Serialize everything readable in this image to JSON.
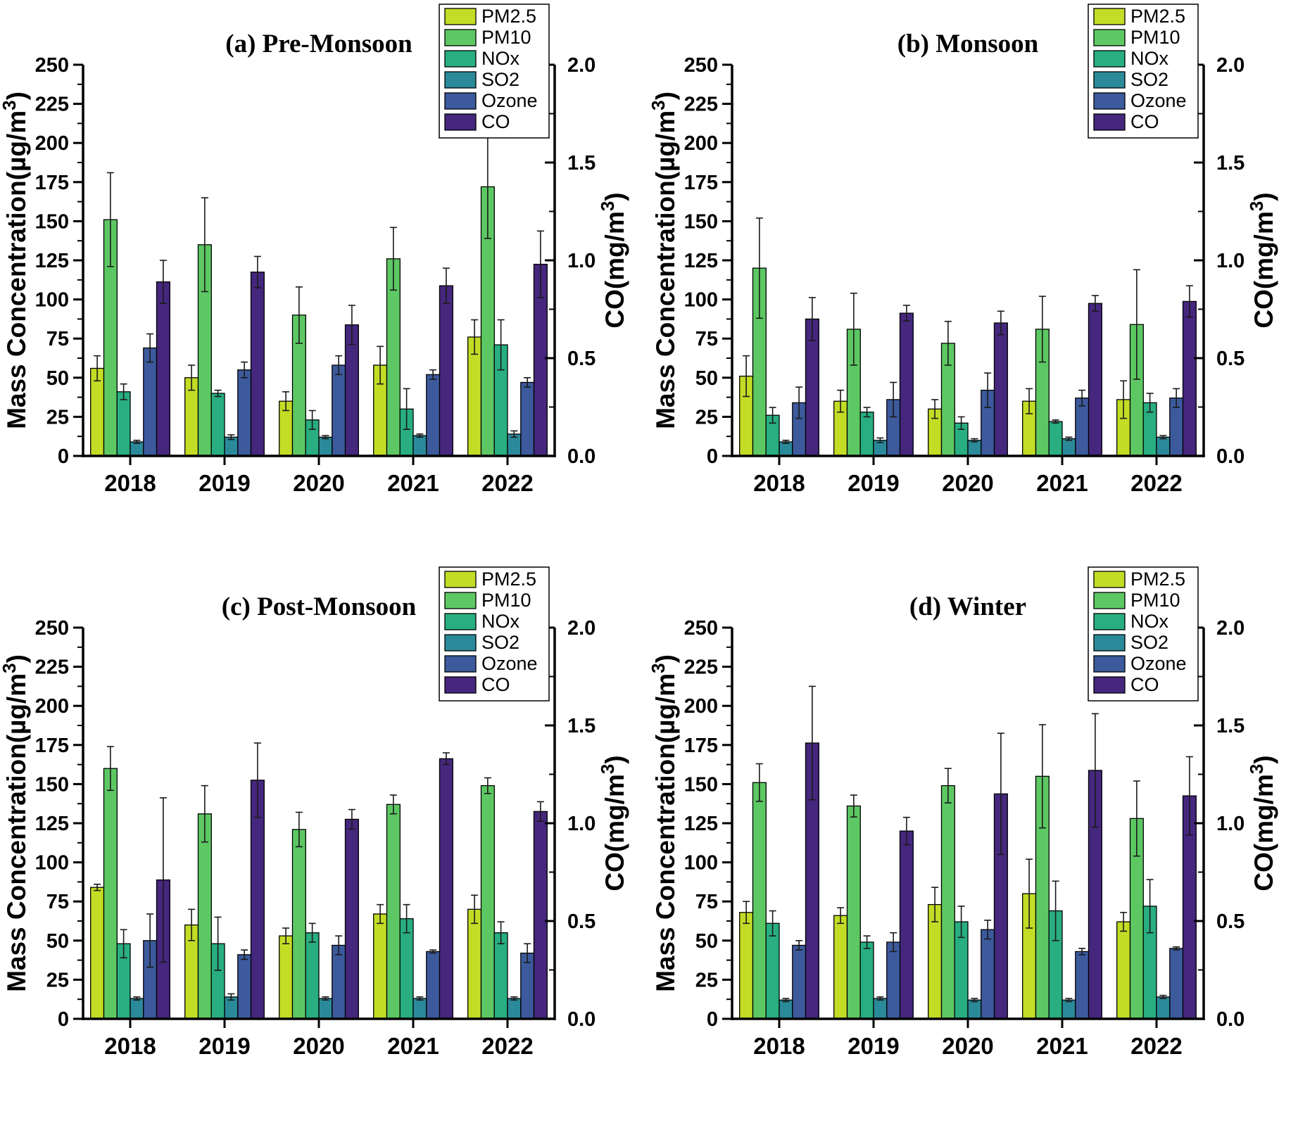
{
  "figure": {
    "background": "#ffffff",
    "error_bar_color": "#1a1a1a",
    "axis_color": "#000000"
  },
  "legend": {
    "entries": [
      "PM2.5",
      "PM10",
      "NOx",
      "SO2",
      "Ozone",
      "CO"
    ]
  },
  "chart_data": [
    {
      "type": "bar",
      "panel_id": "a",
      "title": "(a) Pre-Monsoon",
      "categories": [
        "2018",
        "2019",
        "2020",
        "2021",
        "2022"
      ],
      "left_axis": {
        "label": "Mass Concentration(µg/m³)",
        "min": 0,
        "max": 250,
        "major_step": 25,
        "minor_step": 12.5,
        "tick_labels": [
          "0",
          "25",
          "50",
          "75",
          "100",
          "125",
          "150",
          "175",
          "200",
          "225",
          "250"
        ]
      },
      "right_axis": {
        "label": "CO(mg/m³)",
        "min": 0,
        "max": 2.0,
        "major_step": 0.5,
        "minor_step": 0.25,
        "tick_labels": [
          "0.0",
          "0.5",
          "1.0",
          "1.5",
          "2.0"
        ]
      },
      "legend_position": "top-right",
      "grid": false,
      "series": [
        {
          "name": "PM2.5",
          "color": "#c3dc26",
          "axis": "left",
          "values": [
            56,
            50,
            35,
            58,
            76
          ],
          "errors": [
            8,
            8,
            6,
            12,
            11
          ]
        },
        {
          "name": "PM10",
          "color": "#5dc863",
          "axis": "left",
          "values": [
            151,
            135,
            90,
            126,
            172
          ],
          "errors": [
            30,
            30,
            18,
            20,
            33
          ]
        },
        {
          "name": "NOx",
          "color": "#28ae80",
          "axis": "left",
          "values": [
            41,
            40,
            23,
            30,
            71
          ],
          "errors": [
            5,
            2,
            6,
            13,
            16
          ]
        },
        {
          "name": "SO2",
          "color": "#2b8a99",
          "axis": "left",
          "values": [
            9,
            12,
            12,
            13,
            14
          ],
          "errors": [
            1,
            1.5,
            1,
            1,
            2
          ]
        },
        {
          "name": "Ozone",
          "color": "#3c5a9c",
          "axis": "left",
          "values": [
            69,
            55,
            58,
            52,
            47
          ],
          "errors": [
            9,
            5,
            6,
            3,
            3
          ]
        },
        {
          "name": "CO",
          "color": "#45277d",
          "axis": "right",
          "values": [
            0.89,
            0.94,
            0.67,
            0.87,
            0.98
          ],
          "errors": [
            0.11,
            0.08,
            0.1,
            0.09,
            0.17
          ]
        }
      ]
    },
    {
      "type": "bar",
      "panel_id": "b",
      "title": "(b) Monsoon",
      "categories": [
        "2018",
        "2019",
        "2020",
        "2021",
        "2022"
      ],
      "left_axis": {
        "label": "Mass Concentration(µg/m³)",
        "min": 0,
        "max": 250,
        "major_step": 25,
        "minor_step": 12.5,
        "tick_labels": [
          "0",
          "25",
          "50",
          "75",
          "100",
          "125",
          "150",
          "175",
          "200",
          "225",
          "250"
        ]
      },
      "right_axis": {
        "label": "CO(mg/m³)",
        "min": 0,
        "max": 2.0,
        "major_step": 0.5,
        "minor_step": 0.25,
        "tick_labels": [
          "0.0",
          "0.5",
          "1.0",
          "1.5",
          "2.0"
        ]
      },
      "legend_position": "top-right",
      "grid": false,
      "series": [
        {
          "name": "PM2.5",
          "color": "#c3dc26",
          "axis": "left",
          "values": [
            51,
            35,
            30,
            35,
            36
          ],
          "errors": [
            13,
            7,
            6,
            8,
            12
          ]
        },
        {
          "name": "PM10",
          "color": "#5dc863",
          "axis": "left",
          "values": [
            120,
            81,
            72,
            81,
            84
          ],
          "errors": [
            32,
            23,
            14,
            21,
            35
          ]
        },
        {
          "name": "NOx",
          "color": "#28ae80",
          "axis": "left",
          "values": [
            26,
            28,
            21,
            22,
            34
          ],
          "errors": [
            5,
            3,
            4,
            1,
            6
          ]
        },
        {
          "name": "SO2",
          "color": "#2b8a99",
          "axis": "left",
          "values": [
            9,
            10,
            10,
            11,
            12
          ],
          "errors": [
            1,
            1.5,
            1,
            1,
            1
          ]
        },
        {
          "name": "Ozone",
          "color": "#3c5a9c",
          "axis": "left",
          "values": [
            34,
            36,
            42,
            37,
            37
          ],
          "errors": [
            10,
            11,
            11,
            5,
            6
          ]
        },
        {
          "name": "CO",
          "color": "#45277d",
          "axis": "right",
          "values": [
            0.7,
            0.73,
            0.68,
            0.78,
            0.79
          ],
          "errors": [
            0.11,
            0.04,
            0.06,
            0.04,
            0.08
          ]
        }
      ]
    },
    {
      "type": "bar",
      "panel_id": "c",
      "title": "(c) Post-Monsoon",
      "categories": [
        "2018",
        "2019",
        "2020",
        "2021",
        "2022"
      ],
      "left_axis": {
        "label": "Mass Concentration(µg/m³)",
        "min": 0,
        "max": 250,
        "major_step": 25,
        "minor_step": 12.5,
        "tick_labels": [
          "0",
          "25",
          "50",
          "75",
          "100",
          "125",
          "150",
          "175",
          "200",
          "225",
          "250"
        ]
      },
      "right_axis": {
        "label": "CO(mg/m³)",
        "min": 0,
        "max": 2.0,
        "major_step": 0.5,
        "minor_step": 0.25,
        "tick_labels": [
          "0.0",
          "0.5",
          "1.0",
          "1.5",
          "2.0"
        ]
      },
      "legend_position": "top-right",
      "grid": false,
      "series": [
        {
          "name": "PM2.5",
          "color": "#c3dc26",
          "axis": "left",
          "values": [
            84,
            60,
            53,
            67,
            70
          ],
          "errors": [
            2,
            10,
            5,
            6,
            9
          ]
        },
        {
          "name": "PM10",
          "color": "#5dc863",
          "axis": "left",
          "values": [
            160,
            131,
            121,
            137,
            149
          ],
          "errors": [
            14,
            18,
            11,
            6,
            5
          ]
        },
        {
          "name": "NOx",
          "color": "#28ae80",
          "axis": "left",
          "values": [
            48,
            48,
            55,
            64,
            55
          ],
          "errors": [
            9,
            17,
            6,
            9,
            7
          ]
        },
        {
          "name": "SO2",
          "color": "#2b8a99",
          "axis": "left",
          "values": [
            13,
            14,
            13,
            13,
            13
          ],
          "errors": [
            1,
            2,
            1,
            1,
            1
          ]
        },
        {
          "name": "Ozone",
          "color": "#3c5a9c",
          "axis": "left",
          "values": [
            50,
            41,
            47,
            43,
            42
          ],
          "errors": [
            17,
            3,
            6,
            1,
            6
          ]
        },
        {
          "name": "CO",
          "color": "#45277d",
          "axis": "right",
          "values": [
            0.71,
            1.22,
            1.02,
            1.33,
            1.06
          ],
          "errors": [
            0.42,
            0.19,
            0.05,
            0.03,
            0.05
          ]
        }
      ]
    },
    {
      "type": "bar",
      "panel_id": "d",
      "title": "(d) Winter",
      "categories": [
        "2018",
        "2019",
        "2020",
        "2021",
        "2022"
      ],
      "left_axis": {
        "label": "Mass Concentration(µg/m³)",
        "min": 0,
        "max": 250,
        "major_step": 25,
        "minor_step": 12.5,
        "tick_labels": [
          "0",
          "25",
          "50",
          "75",
          "100",
          "125",
          "150",
          "175",
          "200",
          "225",
          "250"
        ]
      },
      "right_axis": {
        "label": "CO(mg/m³)",
        "min": 0,
        "max": 2.0,
        "major_step": 0.5,
        "minor_step": 0.25,
        "tick_labels": [
          "0.0",
          "0.5",
          "1.0",
          "1.5",
          "2.0"
        ]
      },
      "legend_position": "top-right",
      "grid": false,
      "series": [
        {
          "name": "PM2.5",
          "color": "#c3dc26",
          "axis": "left",
          "values": [
            68,
            66,
            73,
            80,
            62
          ],
          "errors": [
            7,
            5,
            11,
            22,
            6
          ]
        },
        {
          "name": "PM10",
          "color": "#5dc863",
          "axis": "left",
          "values": [
            151,
            136,
            149,
            155,
            128
          ],
          "errors": [
            12,
            7,
            11,
            33,
            24
          ]
        },
        {
          "name": "NOx",
          "color": "#28ae80",
          "axis": "left",
          "values": [
            61,
            49,
            62,
            69,
            72
          ],
          "errors": [
            8,
            4,
            10,
            19,
            17
          ]
        },
        {
          "name": "SO2",
          "color": "#2b8a99",
          "axis": "left",
          "values": [
            12,
            13,
            12,
            12,
            14
          ],
          "errors": [
            1,
            1,
            1,
            1,
            1
          ]
        },
        {
          "name": "Ozone",
          "color": "#3c5a9c",
          "axis": "left",
          "values": [
            47,
            49,
            57,
            43,
            45
          ],
          "errors": [
            3,
            6,
            6,
            2,
            1
          ]
        },
        {
          "name": "CO",
          "color": "#45277d",
          "axis": "right",
          "values": [
            1.41,
            0.96,
            1.15,
            1.27,
            1.14
          ],
          "errors": [
            0.29,
            0.07,
            0.31,
            0.29,
            0.2
          ]
        }
      ]
    }
  ]
}
